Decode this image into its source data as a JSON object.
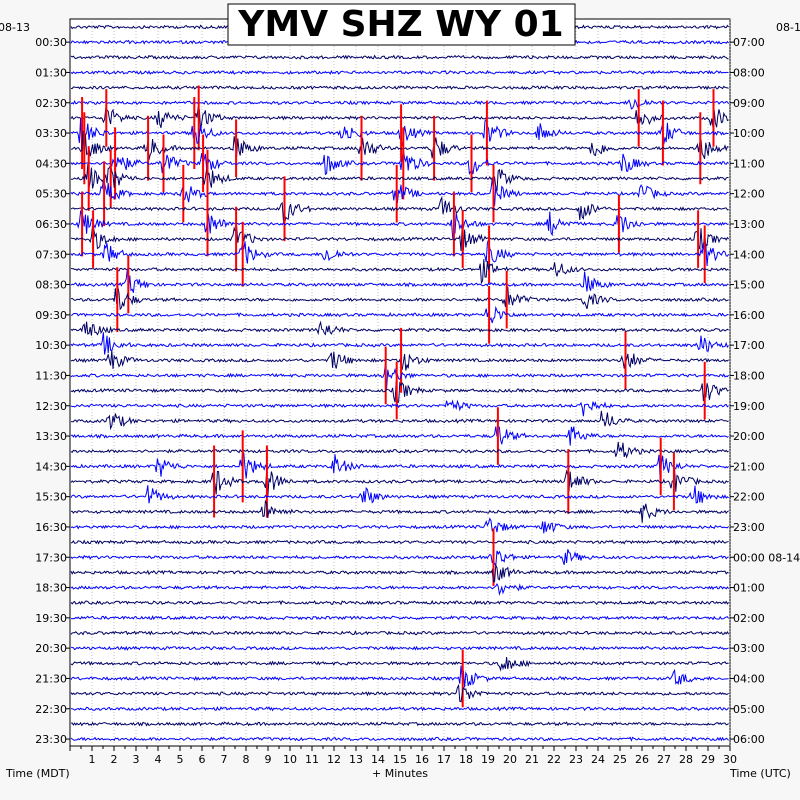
{
  "chart_data": {
    "type": "line",
    "title": "YMV SHZ WY 01",
    "date_left": "08-13",
    "date_right": "08-1",
    "date_right_inline": "08-14",
    "xlabel": "+ Minutes",
    "y_left_label": "Time (MDT)",
    "y_right_label": "Time (UTC)",
    "x_ticks": [
      1,
      2,
      3,
      4,
      5,
      6,
      7,
      8,
      9,
      10,
      11,
      12,
      13,
      14,
      15,
      16,
      17,
      18,
      19,
      20,
      21,
      22,
      23,
      24,
      25,
      26,
      27,
      28,
      29,
      30
    ],
    "xlim": [
      0,
      30
    ],
    "rows_per_label": 2,
    "row_count": 48,
    "left_times": [
      "00:30",
      "01:30",
      "02:30",
      "03:30",
      "04:30",
      "05:30",
      "06:30",
      "07:30",
      "08:30",
      "09:30",
      "10:30",
      "11:30",
      "12:30",
      "13:30",
      "14:30",
      "15:30",
      "16:30",
      "17:30",
      "18:30",
      "19:30",
      "20:30",
      "21:30",
      "22:30",
      "23:30"
    ],
    "right_times": [
      "07:00",
      "08:00",
      "09:00",
      "10:00",
      "11:00",
      "12:00",
      "13:00",
      "14:00",
      "15:00",
      "16:00",
      "17:00",
      "18:00",
      "19:00",
      "20:00",
      "21:00",
      "22:00",
      "23:00",
      "00:00 08-14",
      "01:00",
      "02:00",
      "03:00",
      "04:00",
      "05:00",
      "06:00"
    ],
    "trace_colors": [
      "#000066",
      "#0000ff"
    ],
    "clip_color": "#ff0000",
    "bursts": [
      {
        "row": 5,
        "min": 25.5,
        "amp": 1.0
      },
      {
        "row": 6,
        "min": 1.6,
        "amp": 1.6
      },
      {
        "row": 6,
        "min": 4.0,
        "amp": 1.3
      },
      {
        "row": 6,
        "min": 5.8,
        "amp": 1.8
      },
      {
        "row": 6,
        "min": 25.8,
        "amp": 1.6
      },
      {
        "row": 6,
        "min": 29.2,
        "amp": 1.6
      },
      {
        "row": 7,
        "min": 0.5,
        "amp": 2.0
      },
      {
        "row": 7,
        "min": 5.6,
        "amp": 2.0
      },
      {
        "row": 7,
        "min": 12.4,
        "amp": 1.4
      },
      {
        "row": 7,
        "min": 15.0,
        "amp": 1.6
      },
      {
        "row": 7,
        "min": 18.9,
        "amp": 1.8
      },
      {
        "row": 7,
        "min": 21.3,
        "amp": 1.2
      },
      {
        "row": 7,
        "min": 26.9,
        "amp": 1.8
      },
      {
        "row": 8,
        "min": 0.6,
        "amp": 2.0
      },
      {
        "row": 8,
        "min": 3.5,
        "amp": 1.8
      },
      {
        "row": 8,
        "min": 7.5,
        "amp": 1.6
      },
      {
        "row": 8,
        "min": 13.2,
        "amp": 1.8
      },
      {
        "row": 8,
        "min": 16.5,
        "amp": 1.8
      },
      {
        "row": 8,
        "min": 23.7,
        "amp": 1.4
      },
      {
        "row": 8,
        "min": 28.6,
        "amp": 2.0
      },
      {
        "row": 9,
        "min": 2.0,
        "amp": 2.0
      },
      {
        "row": 9,
        "min": 4.2,
        "amp": 1.6
      },
      {
        "row": 9,
        "min": 6.0,
        "amp": 1.6
      },
      {
        "row": 9,
        "min": 11.6,
        "amp": 1.4
      },
      {
        "row": 9,
        "min": 15.1,
        "amp": 2.0
      },
      {
        "row": 9,
        "min": 18.2,
        "amp": 1.6
      },
      {
        "row": 9,
        "min": 25.1,
        "amp": 1.4
      },
      {
        "row": 10,
        "min": 0.8,
        "amp": 1.8
      },
      {
        "row": 10,
        "min": 1.8,
        "amp": 1.6
      },
      {
        "row": 10,
        "min": 6.2,
        "amp": 1.6
      },
      {
        "row": 10,
        "min": 19.4,
        "amp": 1.4
      },
      {
        "row": 11,
        "min": 1.5,
        "amp": 1.8
      },
      {
        "row": 11,
        "min": 5.1,
        "amp": 1.6
      },
      {
        "row": 11,
        "min": 14.8,
        "amp": 1.6
      },
      {
        "row": 11,
        "min": 19.2,
        "amp": 1.6
      },
      {
        "row": 11,
        "min": 25.9,
        "amp": 1.4
      },
      {
        "row": 12,
        "min": 9.7,
        "amp": 1.8
      },
      {
        "row": 12,
        "min": 16.9,
        "amp": 1.4
      },
      {
        "row": 12,
        "min": 23.2,
        "amp": 1.4
      },
      {
        "row": 13,
        "min": 0.5,
        "amp": 1.8
      },
      {
        "row": 13,
        "min": 6.2,
        "amp": 1.8
      },
      {
        "row": 13,
        "min": 17.4,
        "amp": 1.8
      },
      {
        "row": 13,
        "min": 21.8,
        "amp": 1.4
      },
      {
        "row": 13,
        "min": 24.9,
        "amp": 1.6
      },
      {
        "row": 14,
        "min": 1.0,
        "amp": 1.6
      },
      {
        "row": 14,
        "min": 7.5,
        "amp": 1.8
      },
      {
        "row": 14,
        "min": 17.8,
        "amp": 1.6
      },
      {
        "row": 14,
        "min": 28.5,
        "amp": 1.6
      },
      {
        "row": 15,
        "min": 1.6,
        "amp": 1.4
      },
      {
        "row": 15,
        "min": 7.8,
        "amp": 1.8
      },
      {
        "row": 15,
        "min": 11.6,
        "amp": 1.2
      },
      {
        "row": 15,
        "min": 19.0,
        "amp": 1.6
      },
      {
        "row": 15,
        "min": 28.8,
        "amp": 1.6
      },
      {
        "row": 16,
        "min": 18.7,
        "amp": 1.4
      },
      {
        "row": 16,
        "min": 22.0,
        "amp": 1.2
      },
      {
        "row": 17,
        "min": 2.6,
        "amp": 1.6
      },
      {
        "row": 17,
        "min": 23.4,
        "amp": 1.4
      },
      {
        "row": 18,
        "min": 2.1,
        "amp": 1.8
      },
      {
        "row": 18,
        "min": 19.8,
        "amp": 1.6
      },
      {
        "row": 18,
        "min": 23.4,
        "amp": 1.2
      },
      {
        "row": 19,
        "min": 19.0,
        "amp": 1.6
      },
      {
        "row": 20,
        "min": 0.7,
        "amp": 1.4
      },
      {
        "row": 20,
        "min": 11.4,
        "amp": 1.2
      },
      {
        "row": 21,
        "min": 1.5,
        "amp": 1.4
      },
      {
        "row": 21,
        "min": 28.6,
        "amp": 1.4
      },
      {
        "row": 22,
        "min": 1.8,
        "amp": 1.4
      },
      {
        "row": 22,
        "min": 11.9,
        "amp": 1.4
      },
      {
        "row": 22,
        "min": 15.0,
        "amp": 1.8
      },
      {
        "row": 22,
        "min": 25.2,
        "amp": 1.6
      },
      {
        "row": 23,
        "min": 14.3,
        "amp": 1.6
      },
      {
        "row": 24,
        "min": 14.8,
        "amp": 1.6
      },
      {
        "row": 24,
        "min": 28.8,
        "amp": 1.6
      },
      {
        "row": 25,
        "min": 17.2,
        "amp": 1.0
      },
      {
        "row": 25,
        "min": 23.3,
        "amp": 1.4
      },
      {
        "row": 26,
        "min": 1.8,
        "amp": 1.4
      },
      {
        "row": 26,
        "min": 24.2,
        "amp": 1.4
      },
      {
        "row": 27,
        "min": 19.4,
        "amp": 1.6
      },
      {
        "row": 27,
        "min": 22.7,
        "amp": 1.4
      },
      {
        "row": 28,
        "min": 24.9,
        "amp": 1.4
      },
      {
        "row": 29,
        "min": 4.0,
        "amp": 1.4
      },
      {
        "row": 29,
        "min": 7.8,
        "amp": 2.0
      },
      {
        "row": 29,
        "min": 12.0,
        "amp": 1.4
      },
      {
        "row": 29,
        "min": 26.8,
        "amp": 1.6
      },
      {
        "row": 30,
        "min": 6.5,
        "amp": 2.0
      },
      {
        "row": 30,
        "min": 8.9,
        "amp": 2.0
      },
      {
        "row": 30,
        "min": 22.6,
        "amp": 1.8
      },
      {
        "row": 30,
        "min": 27.4,
        "amp": 1.6
      },
      {
        "row": 31,
        "min": 3.5,
        "amp": 1.4
      },
      {
        "row": 31,
        "min": 13.3,
        "amp": 1.4
      },
      {
        "row": 31,
        "min": 28.3,
        "amp": 1.4
      },
      {
        "row": 32,
        "min": 8.8,
        "amp": 1.4
      },
      {
        "row": 32,
        "min": 26.0,
        "amp": 1.2
      },
      {
        "row": 33,
        "min": 19.0,
        "amp": 1.4
      },
      {
        "row": 33,
        "min": 21.5,
        "amp": 1.0
      },
      {
        "row": 35,
        "min": 19.2,
        "amp": 1.6
      },
      {
        "row": 35,
        "min": 22.5,
        "amp": 1.0
      },
      {
        "row": 36,
        "min": 19.3,
        "amp": 1.4
      },
      {
        "row": 37,
        "min": 19.5,
        "amp": 1.0
      },
      {
        "row": 42,
        "min": 19.6,
        "amp": 1.4
      },
      {
        "row": 43,
        "min": 17.8,
        "amp": 1.6
      },
      {
        "row": 43,
        "min": 27.5,
        "amp": 1.0
      },
      {
        "row": 44,
        "min": 17.7,
        "amp": 1.4
      }
    ]
  }
}
